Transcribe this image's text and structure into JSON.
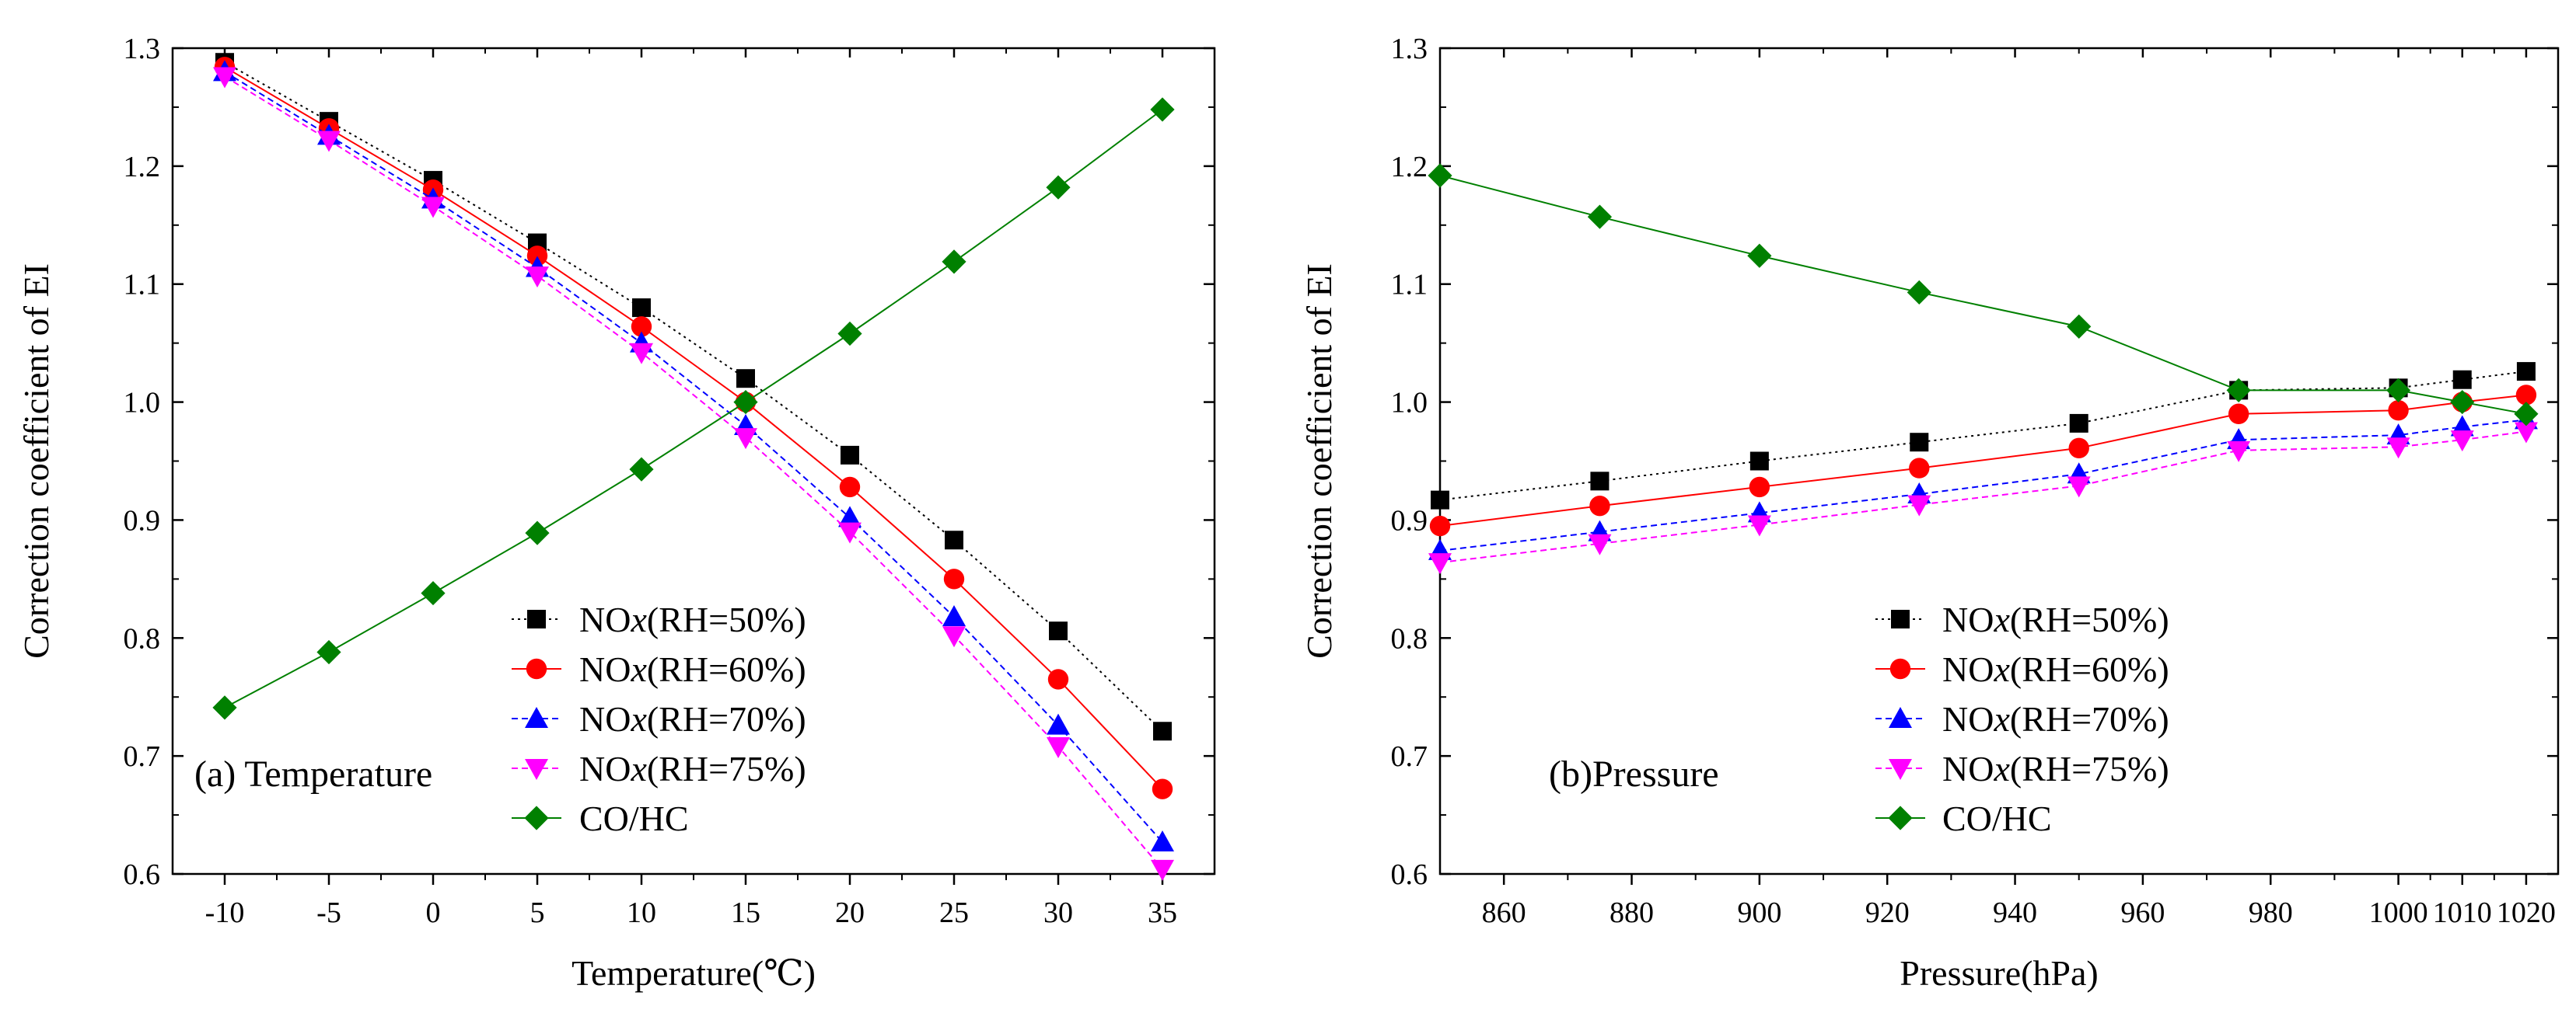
{
  "chart_data": [
    {
      "type": "line",
      "title": "(a) Temperature",
      "xlabel": "Temperature(℃)",
      "ylabel": "Correction coefficient of EI",
      "xlim": [
        -12.5,
        37.5
      ],
      "ylim": [
        0.6,
        1.3
      ],
      "x_ticks": [
        "-10",
        "-5",
        "0",
        "5",
        "10",
        "15",
        "20",
        "25",
        "30",
        "35"
      ],
      "y_ticks": [
        "0.6",
        "0.7",
        "0.8",
        "0.9",
        "1.0",
        "1.1",
        "1.2",
        "1.3"
      ],
      "x": [
        -10,
        -5,
        0,
        5,
        10,
        15,
        20,
        25,
        30,
        35
      ],
      "legend_position": "bottom-right",
      "series": [
        {
          "name": "NOx(RH=50%)",
          "name_prefix": "NO",
          "name_italic": "x",
          "name_suffix": "(RH=50%)",
          "color": "#000000",
          "marker": "square",
          "dash": "dotted",
          "values": [
            1.288,
            1.238,
            1.188,
            1.135,
            1.08,
            1.02,
            0.955,
            0.883,
            0.806,
            0.721
          ]
        },
        {
          "name": "NOx(RH=60%)",
          "name_prefix": "NO",
          "name_italic": "x",
          "name_suffix": "(RH=60%)",
          "color": "#ff0000",
          "marker": "circle",
          "dash": "solid",
          "values": [
            1.284,
            1.232,
            1.18,
            1.124,
            1.064,
            1.0,
            0.928,
            0.85,
            0.765,
            0.672
          ]
        },
        {
          "name": "NOx(RH=70%)",
          "name_prefix": "NO",
          "name_italic": "x",
          "name_suffix": "(RH=70%)",
          "color": "#0000ff",
          "marker": "triangle-up",
          "dash": "dashed",
          "values": [
            1.28,
            1.226,
            1.172,
            1.114,
            1.05,
            0.98,
            0.902,
            0.818,
            0.726,
            0.627
          ]
        },
        {
          "name": "NOx(RH=75%)",
          "name_prefix": "NO",
          "name_italic": "x",
          "name_suffix": "(RH=75%)",
          "color": "#ff00ff",
          "marker": "triangle-down",
          "dash": "dashed",
          "values": [
            1.276,
            1.222,
            1.166,
            1.107,
            1.042,
            0.97,
            0.89,
            0.802,
            0.708,
            0.604
          ]
        },
        {
          "name": "CO/HC",
          "name_prefix": "CO/HC",
          "name_italic": "",
          "name_suffix": "",
          "color": "#008000",
          "marker": "diamond",
          "dash": "solid",
          "values": [
            0.741,
            0.788,
            0.838,
            0.889,
            0.943,
            1.0,
            1.058,
            1.119,
            1.182,
            1.248
          ]
        }
      ]
    },
    {
      "type": "line",
      "title": "(b)Pressure",
      "xlabel": "Pressure(hPa)",
      "ylabel": "Correction coefficient of EI",
      "xlim": [
        850,
        1025
      ],
      "ylim": [
        0.6,
        1.3
      ],
      "x_ticks": [
        "860",
        "880",
        "900",
        "920",
        "940",
        "960",
        "980",
        "1000",
        "1010",
        "1020"
      ],
      "y_ticks": [
        "0.6",
        "0.7",
        "0.8",
        "0.9",
        "1.0",
        "1.1",
        "1.2",
        "1.3"
      ],
      "x": [
        850,
        875,
        900,
        925,
        950,
        975,
        1000,
        1010,
        1020
      ],
      "legend_position": "bottom-right",
      "series": [
        {
          "name": "NOx(RH=50%)",
          "name_prefix": "NO",
          "name_italic": "x",
          "name_suffix": "(RH=50%)",
          "color": "#000000",
          "marker": "square",
          "dash": "dotted",
          "values": [
            0.917,
            0.933,
            0.95,
            0.966,
            0.982,
            1.01,
            1.012,
            1.019,
            1.026
          ]
        },
        {
          "name": "NOx(RH=60%)",
          "name_prefix": "NO",
          "name_italic": "x",
          "name_suffix": "(RH=60%)",
          "color": "#ff0000",
          "marker": "circle",
          "dash": "solid",
          "values": [
            0.895,
            0.912,
            0.928,
            0.944,
            0.961,
            0.99,
            0.993,
            1.0,
            1.006
          ]
        },
        {
          "name": "NOx(RH=70%)",
          "name_prefix": "NO",
          "name_italic": "x",
          "name_suffix": "(RH=70%)",
          "color": "#0000ff",
          "marker": "triangle-up",
          "dash": "dashed",
          "values": [
            0.874,
            0.89,
            0.906,
            0.922,
            0.939,
            0.968,
            0.972,
            0.979,
            0.985
          ]
        },
        {
          "name": "NOx(RH=75%)",
          "name_prefix": "NO",
          "name_italic": "x",
          "name_suffix": "(RH=75%)",
          "color": "#ff00ff",
          "marker": "triangle-down",
          "dash": "dashed",
          "values": [
            0.864,
            0.88,
            0.896,
            0.913,
            0.929,
            0.959,
            0.962,
            0.968,
            0.975
          ]
        },
        {
          "name": "CO/HC",
          "name_prefix": "CO/HC",
          "name_italic": "",
          "name_suffix": "",
          "color": "#008000",
          "marker": "diamond",
          "dash": "solid",
          "values": [
            1.192,
            1.157,
            1.124,
            1.093,
            1.064,
            1.01,
            1.01,
            1.0,
            0.99
          ]
        }
      ]
    }
  ]
}
